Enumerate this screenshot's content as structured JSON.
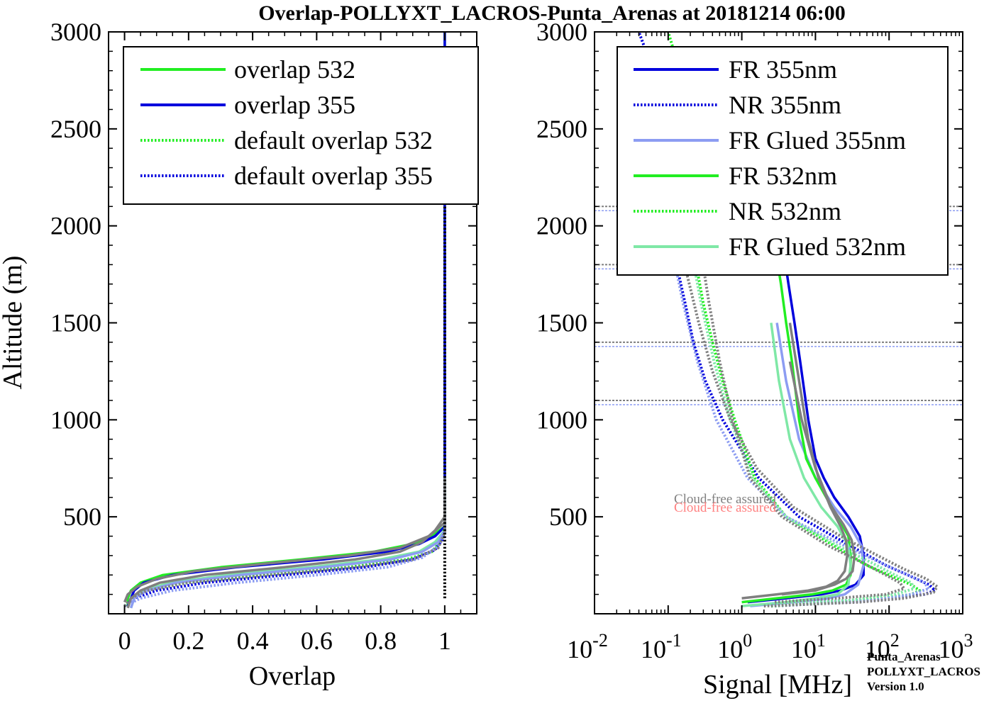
{
  "title": "Overlap-POLLYXT_LACROS-Punta_Arenas at 20181214 06:00",
  "watermark": [
    "Punta_Arenas",
    "POLLYXT_LACROS",
    "Version 1.0"
  ],
  "colors": {
    "green": "#22ee22",
    "blue": "#0000dd",
    "light_green": "#7fe8a6",
    "light_blue": "#8c9cf2",
    "gray": "#7f7f7f",
    "black": "#000000",
    "note_gray": "#808080",
    "note_red": "#ff8080"
  },
  "chart_data": [
    {
      "type": "line",
      "xlabel": "Overlap",
      "ylabel": "Altitude (m)",
      "xlim": [
        -0.05,
        1.1
      ],
      "ylim": [
        0,
        3000
      ],
      "xticks": [
        0,
        0.2,
        0.4,
        0.6,
        0.8,
        1
      ],
      "xtick_labels": [
        "0",
        "0.2",
        "0.4",
        "0.6",
        "0.8",
        "1"
      ],
      "yticks": [
        500,
        1000,
        1500,
        2000,
        2500,
        3000
      ],
      "ytick_labels": [
        "500",
        "1000",
        "1500",
        "2000",
        "2500",
        "3000"
      ],
      "legend_position": "top-right",
      "legend": [
        "overlap 532",
        "overlap 355",
        "default overlap 532",
        "default overlap 355"
      ],
      "series": [
        {
          "name": "overlap 532",
          "color": "green",
          "style": "solid",
          "x": [
            0.01,
            0.01,
            0.02,
            0.05,
            0.12,
            0.3,
            0.55,
            0.78,
            0.9,
            0.96,
            1.0,
            1.0,
            1.0,
            1.0,
            1.0,
            1.0,
            1.0,
            1.0,
            1.0,
            1.0,
            1.0,
            1.0
          ],
          "y": [
            40,
            80,
            120,
            160,
            200,
            240,
            280,
            320,
            360,
            400,
            450,
            500,
            700,
            1000,
            1300,
            1600,
            1800,
            2000,
            2100,
            2500,
            2900,
            3000
          ]
        },
        {
          "name": "overlap 355",
          "color": "blue",
          "style": "solid",
          "x": [
            0.01,
            0.02,
            0.03,
            0.06,
            0.15,
            0.35,
            0.62,
            0.82,
            0.92,
            0.97,
            1.0,
            1.0,
            1.0,
            1.0,
            1.0,
            1.0,
            1.0,
            1.0,
            1.0,
            1.0,
            1.0,
            1.0
          ],
          "y": [
            40,
            80,
            120,
            160,
            200,
            240,
            280,
            320,
            360,
            400,
            450,
            500,
            700,
            1000,
            1300,
            1600,
            1800,
            2000,
            2100,
            2500,
            2900,
            3000
          ]
        },
        {
          "name": "default overlap 532",
          "color": "green",
          "style": "dotted",
          "x": [
            0.0,
            0.02,
            0.06,
            0.18,
            0.42,
            0.7,
            0.88,
            0.96,
            0.99,
            1.0,
            1.0
          ],
          "y": [
            40,
            80,
            120,
            160,
            200,
            240,
            280,
            320,
            380,
            450,
            500
          ]
        },
        {
          "name": "default overlap 355",
          "color": "blue",
          "style": "dotted",
          "x": [
            0.0,
            0.03,
            0.1,
            0.25,
            0.5,
            0.75,
            0.9,
            0.97,
            1.0,
            1.0
          ],
          "y": [
            40,
            80,
            120,
            160,
            200,
            240,
            280,
            330,
            400,
            500
          ]
        },
        {
          "name": "",
          "color": "light_green",
          "style": "solid",
          "x": [
            0.02,
            0.03,
            0.06,
            0.14,
            0.32,
            0.58,
            0.8,
            0.92,
            0.97,
            1.0,
            1.0
          ],
          "y": [
            30,
            80,
            120,
            160,
            200,
            240,
            280,
            320,
            370,
            430,
            500
          ]
        },
        {
          "name": "",
          "color": "light_blue",
          "style": "solid",
          "x": [
            0.02,
            0.03,
            0.07,
            0.16,
            0.36,
            0.62,
            0.83,
            0.93,
            0.98,
            1.0,
            1.0
          ],
          "y": [
            30,
            80,
            120,
            160,
            200,
            240,
            280,
            320,
            370,
            430,
            500
          ]
        },
        {
          "name": "",
          "color": "light_blue",
          "style": "dotted",
          "x": [
            0.0,
            0.05,
            0.15,
            0.35,
            0.6,
            0.82,
            0.93,
            0.98,
            1.0,
            1.0
          ],
          "y": [
            40,
            80,
            120,
            160,
            200,
            240,
            290,
            350,
            420,
            500
          ]
        },
        {
          "name": "",
          "color": "gray",
          "style": "solid",
          "x": [
            0.01,
            0.02,
            0.05,
            0.11,
            0.25,
            0.5,
            0.72,
            0.86,
            0.93,
            0.97,
            1.0,
            1.0
          ],
          "y": [
            30,
            80,
            120,
            160,
            200,
            240,
            280,
            320,
            370,
            430,
            500,
            700
          ]
        },
        {
          "name": "",
          "color": "gray",
          "style": "solid",
          "x": [
            0.0,
            0.01,
            0.04,
            0.1,
            0.22,
            0.45,
            0.7,
            0.86,
            0.95,
            1.0,
            1.0
          ],
          "y": [
            60,
            100,
            140,
            180,
            220,
            260,
            300,
            340,
            400,
            470,
            560
          ]
        },
        {
          "name": "",
          "color": "gray",
          "style": "dotted",
          "x": [
            0.0,
            0.02,
            0.07,
            0.2,
            0.45,
            0.72,
            0.9,
            0.98,
            1.0,
            1.0
          ],
          "y": [
            40,
            80,
            120,
            160,
            200,
            240,
            280,
            340,
            420,
            500
          ]
        },
        {
          "name": "",
          "color": "black",
          "style": "dotted",
          "x": [
            1.0,
            1.0
          ],
          "y": [
            80,
            2150
          ]
        }
      ]
    },
    {
      "type": "line",
      "xlabel": "Signal [MHz]",
      "xscale": "log",
      "xlim": [
        0.01,
        1000
      ],
      "ylim": [
        0,
        3000
      ],
      "xticks": [
        0.01,
        0.1,
        1,
        10,
        100,
        1000
      ],
      "xtick_labels": [
        [
          "10",
          "-2"
        ],
        [
          "10",
          "-1"
        ],
        [
          "10",
          "0"
        ],
        [
          "10",
          "1"
        ],
        [
          "10",
          "2"
        ],
        [
          "10",
          "3"
        ]
      ],
      "yticks": [
        500,
        1000,
        1500,
        2000,
        2500,
        3000
      ],
      "ytick_labels": [
        "500",
        "1000",
        "1500",
        "2000",
        "2500",
        "3000"
      ],
      "legend_position": "top-right",
      "legend": [
        "FR 355nm",
        "NR 355nm",
        "FR Glued 355nm",
        "FR 532nm",
        "NR 532nm",
        "FR Glued 532nm"
      ],
      "annotations": [
        "Cloud-free assured",
        "Cloud-free assured"
      ],
      "cloud_layers": [
        1100,
        1400,
        1800,
        2100
      ],
      "series": [
        {
          "name": "FR 355nm",
          "color": "blue",
          "style": "solid",
          "x": [
            1.2,
            4,
            12,
            22,
            35,
            45,
            45,
            40,
            28,
            18,
            13,
            10,
            8,
            6.2,
            5.2,
            4.3,
            3.6,
            3.0
          ],
          "y": [
            60,
            80,
            100,
            120,
            150,
            200,
            300,
            400,
            500,
            600,
            700,
            800,
            1000,
            1300,
            1500,
            1700,
            1900,
            2100
          ]
        },
        {
          "name": "NR 355nm",
          "color": "blue",
          "style": "dotted",
          "x": [
            2.5,
            30,
            120,
            300,
            420,
            350,
            180,
            90,
            30,
            6,
            1.7,
            0.55,
            0.32,
            0.22,
            0.17,
            0.13,
            0.1,
            0.08,
            0.06,
            0.05,
            0.04
          ],
          "y": [
            40,
            60,
            80,
            100,
            120,
            150,
            200,
            250,
            350,
            500,
            700,
            1000,
            1200,
            1400,
            1600,
            1800,
            2000,
            2300,
            2600,
            2900,
            3000
          ]
        },
        {
          "name": "FR Glued 355nm",
          "color": "light_blue",
          "style": "solid",
          "x": [
            1.3,
            5,
            15,
            25,
            38,
            45,
            42,
            30,
            18,
            10,
            6,
            4,
            3
          ],
          "y": [
            40,
            60,
            80,
            100,
            150,
            250,
            350,
            450,
            550,
            700,
            900,
            1200,
            1500
          ]
        },
        {
          "name": "FR 532nm",
          "color": "green",
          "style": "solid",
          "x": [
            1.0,
            3,
            9,
            17,
            26,
            30,
            30,
            28,
            20,
            14,
            10,
            7.5,
            6,
            4.8,
            4,
            3.4,
            2.8,
            2.4
          ],
          "y": [
            60,
            80,
            100,
            120,
            150,
            200,
            300,
            400,
            500,
            600,
            700,
            800,
            1000,
            1300,
            1500,
            1700,
            1900,
            2100
          ]
        },
        {
          "name": "NR 532nm",
          "color": "green",
          "style": "dotted",
          "x": [
            2.5,
            20,
            80,
            200,
            260,
            200,
            100,
            50,
            18,
            4,
            1.5,
            0.8,
            0.55,
            0.4,
            0.3,
            0.24,
            0.2,
            0.17,
            0.14,
            0.12,
            0.1
          ],
          "y": [
            40,
            60,
            80,
            100,
            120,
            150,
            200,
            250,
            350,
            500,
            700,
            1000,
            1200,
            1400,
            1600,
            1800,
            2000,
            2300,
            2600,
            2900,
            3000
          ]
        },
        {
          "name": "FR Glued 532nm",
          "color": "light_green",
          "style": "solid",
          "x": [
            1.0,
            4,
            10,
            20,
            28,
            30,
            28,
            20,
            12,
            7,
            4.5,
            3.2,
            2.5
          ],
          "y": [
            40,
            60,
            80,
            100,
            150,
            250,
            350,
            450,
            550,
            700,
            900,
            1200,
            1500
          ]
        },
        {
          "name": "",
          "color": "light_blue",
          "style": "dotted",
          "x": [
            2.5,
            60,
            200,
            350,
            300,
            180,
            80,
            25,
            4,
            1.2,
            0.45,
            0.25,
            0.16,
            0.11,
            0.08
          ],
          "y": [
            50,
            70,
            100,
            130,
            160,
            200,
            260,
            350,
            500,
            700,
            1000,
            1300,
            1600,
            1900,
            2100
          ]
        },
        {
          "name": "",
          "color": "light_green",
          "style": "dotted",
          "x": [
            2.2,
            30,
            120,
            220,
            200,
            120,
            60,
            20,
            4,
            1.4,
            0.7,
            0.42,
            0.28,
            0.2
          ],
          "y": [
            50,
            70,
            100,
            130,
            160,
            200,
            260,
            350,
            500,
            700,
            1000,
            1300,
            1600,
            1900
          ]
        },
        {
          "name": "",
          "color": "gray",
          "style": "solid",
          "x": [
            1.0,
            3,
            8,
            14,
            20,
            25,
            27,
            26,
            22,
            16,
            11,
            8,
            6,
            4.5
          ],
          "y": [
            80,
            100,
            120,
            140,
            170,
            220,
            300,
            380,
            450,
            550,
            700,
            900,
            1200,
            1500
          ]
        },
        {
          "name": "",
          "color": "gray",
          "style": "solid",
          "x": [
            3.5,
            10,
            18,
            26,
            32,
            34,
            31,
            24,
            16,
            10,
            6.5,
            4.5
          ],
          "y": [
            100,
            120,
            150,
            180,
            220,
            300,
            380,
            460,
            560,
            750,
            1000,
            1300
          ]
        },
        {
          "name": "",
          "color": "gray",
          "style": "dotted",
          "x": [
            2.0,
            40,
            160,
            400,
            450,
            320,
            160,
            70,
            22,
            5,
            1.6,
            0.7,
            0.4,
            0.26,
            0.18,
            0.12
          ],
          "y": [
            40,
            60,
            80,
            110,
            140,
            180,
            230,
            300,
            400,
            550,
            750,
            1000,
            1250,
            1500,
            1750,
            1950
          ]
        },
        {
          "name": "",
          "color": "gray",
          "style": "dotted",
          "x": [
            2.8,
            20,
            90,
            160,
            140,
            90,
            45,
            15,
            3.5,
            1.3,
            0.75,
            0.5,
            0.36,
            0.27
          ],
          "y": [
            60,
            80,
            100,
            130,
            160,
            200,
            260,
            350,
            500,
            700,
            1000,
            1300,
            1600,
            1900
          ]
        }
      ]
    }
  ]
}
